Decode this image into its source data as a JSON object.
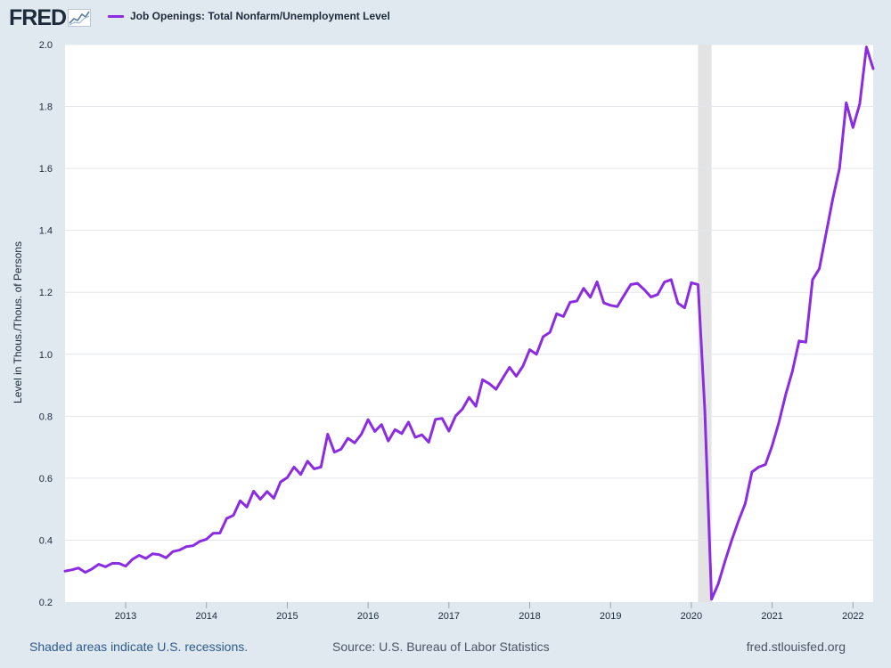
{
  "header": {
    "logo_text": "FRED",
    "logo_icon": "line-chart-icon"
  },
  "legend": {
    "label": "Job Openings: Total Nonfarm/Unemployment Level",
    "color": "#8b2be2"
  },
  "footer": {
    "recession_note": "Shaded areas indicate U.S. recessions.",
    "source": "Source: U.S. Bureau of Labor Statistics",
    "site": "fred.stlouisfed.org"
  },
  "chart_data": {
    "type": "line",
    "ylabel": "Level in Thous./Thous. of Persons",
    "ylim": [
      0.2,
      2.0
    ],
    "yticks": [
      0.2,
      0.4,
      0.6,
      0.8,
      1.0,
      1.2,
      1.4,
      1.6,
      1.8,
      2.0
    ],
    "ytick_labels": [
      "0.2",
      "0.4",
      "0.6",
      "0.8",
      "1.0",
      "1.2",
      "1.4",
      "1.6",
      "1.8",
      "2.0"
    ],
    "xlim": [
      "2012-04",
      "2022-04"
    ],
    "xticks": [
      "2013-01",
      "2014-01",
      "2015-01",
      "2016-01",
      "2017-01",
      "2018-01",
      "2019-01",
      "2020-01",
      "2021-01",
      "2022-01"
    ],
    "xtick_labels": [
      "2013",
      "2014",
      "2015",
      "2016",
      "2017",
      "2018",
      "2019",
      "2020",
      "2021",
      "2022"
    ],
    "grid": true,
    "recessions": [
      {
        "start": "2020-02",
        "end": "2020-04"
      }
    ],
    "series": [
      {
        "name": "Job Openings: Total Nonfarm/Unemployment Level",
        "color": "#8b2be2",
        "x": [
          "2012-04",
          "2012-05",
          "2012-06",
          "2012-07",
          "2012-08",
          "2012-09",
          "2012-10",
          "2012-11",
          "2012-12",
          "2013-01",
          "2013-02",
          "2013-03",
          "2013-04",
          "2013-05",
          "2013-06",
          "2013-07",
          "2013-08",
          "2013-09",
          "2013-10",
          "2013-11",
          "2013-12",
          "2014-01",
          "2014-02",
          "2014-03",
          "2014-04",
          "2014-05",
          "2014-06",
          "2014-07",
          "2014-08",
          "2014-09",
          "2014-10",
          "2014-11",
          "2014-12",
          "2015-01",
          "2015-02",
          "2015-03",
          "2015-04",
          "2015-05",
          "2015-06",
          "2015-07",
          "2015-08",
          "2015-09",
          "2015-10",
          "2015-11",
          "2015-12",
          "2016-01",
          "2016-02",
          "2016-03",
          "2016-04",
          "2016-05",
          "2016-06",
          "2016-07",
          "2016-08",
          "2016-09",
          "2016-10",
          "2016-11",
          "2016-12",
          "2017-01",
          "2017-02",
          "2017-03",
          "2017-04",
          "2017-05",
          "2017-06",
          "2017-07",
          "2017-08",
          "2017-09",
          "2017-10",
          "2017-11",
          "2017-12",
          "2018-01",
          "2018-02",
          "2018-03",
          "2018-04",
          "2018-05",
          "2018-06",
          "2018-07",
          "2018-08",
          "2018-09",
          "2018-10",
          "2018-11",
          "2018-12",
          "2019-01",
          "2019-02",
          "2019-03",
          "2019-04",
          "2019-05",
          "2019-06",
          "2019-07",
          "2019-08",
          "2019-09",
          "2019-10",
          "2019-11",
          "2019-12",
          "2020-01",
          "2020-02",
          "2020-03",
          "2020-04",
          "2020-05",
          "2020-06",
          "2020-07",
          "2020-08",
          "2020-09",
          "2020-10",
          "2020-11",
          "2020-12",
          "2021-01",
          "2021-02",
          "2021-03",
          "2021-04",
          "2021-05",
          "2021-06",
          "2021-07",
          "2021-08",
          "2021-09",
          "2021-10",
          "2021-11",
          "2021-12",
          "2022-01",
          "2022-02",
          "2022-03",
          "2022-04"
        ],
        "values": [
          0.3,
          0.304,
          0.31,
          0.296,
          0.307,
          0.322,
          0.314,
          0.325,
          0.325,
          0.316,
          0.338,
          0.351,
          0.341,
          0.356,
          0.353,
          0.343,
          0.363,
          0.368,
          0.379,
          0.382,
          0.396,
          0.403,
          0.422,
          0.423,
          0.47,
          0.48,
          0.527,
          0.507,
          0.558,
          0.532,
          0.557,
          0.535,
          0.588,
          0.602,
          0.636,
          0.612,
          0.655,
          0.63,
          0.636,
          0.742,
          0.684,
          0.694,
          0.729,
          0.714,
          0.742,
          0.789,
          0.751,
          0.773,
          0.72,
          0.757,
          0.744,
          0.781,
          0.732,
          0.74,
          0.716,
          0.79,
          0.793,
          0.752,
          0.801,
          0.823,
          0.861,
          0.832,
          0.918,
          0.905,
          0.887,
          0.923,
          0.958,
          0.929,
          0.962,
          1.015,
          1.0,
          1.057,
          1.071,
          1.131,
          1.122,
          1.168,
          1.172,
          1.213,
          1.184,
          1.234,
          1.166,
          1.158,
          1.154,
          1.19,
          1.225,
          1.229,
          1.209,
          1.185,
          1.193,
          1.233,
          1.241,
          1.165,
          1.15,
          1.231,
          1.225,
          0.82,
          0.209,
          0.259,
          0.332,
          0.4,
          0.462,
          0.518,
          0.62,
          0.636,
          0.644,
          0.705,
          0.78,
          0.869,
          0.945,
          1.043,
          1.039,
          1.241,
          1.276,
          1.389,
          1.502,
          1.6,
          1.812,
          1.732,
          1.808,
          1.992,
          1.922
        ]
      }
    ]
  }
}
